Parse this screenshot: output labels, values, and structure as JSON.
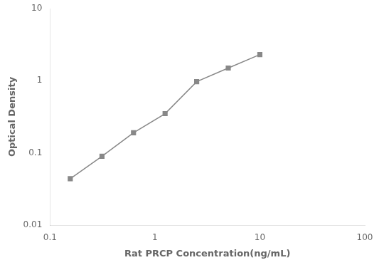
{
  "chart_data": {
    "type": "line",
    "x": [
      0.156,
      0.313,
      0.625,
      1.25,
      2.5,
      5.0,
      10.0
    ],
    "values": [
      0.044,
      0.09,
      0.19,
      0.35,
      0.97,
      1.5,
      2.3
    ],
    "xlabel": "Rat PRCP Concentration(ng/mL)",
    "ylabel": "Optical Density",
    "xlim": [
      0.1,
      100
    ],
    "ylim": [
      0.01,
      10
    ],
    "xticks": [
      0.1,
      1,
      10,
      100
    ],
    "yticks": [
      0.01,
      0.1,
      1,
      10
    ],
    "log": true,
    "grid": false,
    "color": "#888888",
    "marker": "square"
  }
}
